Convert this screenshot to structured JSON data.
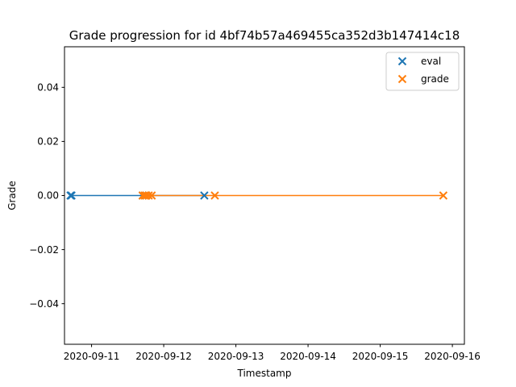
{
  "chart_data": {
    "type": "line",
    "title": "Grade progression for id 4bf74b57a469455ca352d3b147414c18",
    "xlabel": "Timestamp",
    "ylabel": "Grade",
    "x_axis_type": "date",
    "xlim": [
      "2020-09-10T15:00",
      "2020-09-16T04:00"
    ],
    "ylim": [
      -0.055,
      0.055
    ],
    "x_ticks": [
      "2020-09-11",
      "2020-09-12",
      "2020-09-13",
      "2020-09-14",
      "2020-09-15",
      "2020-09-16"
    ],
    "y_ticks": [
      {
        "value": 0.04,
        "label": "0.04"
      },
      {
        "value": 0.02,
        "label": "0.02"
      },
      {
        "value": 0.0,
        "label": "0.00"
      },
      {
        "value": -0.02,
        "label": "−0.02"
      },
      {
        "value": -0.04,
        "label": "−0.04"
      }
    ],
    "grid": false,
    "legend_position": "top-right",
    "series": [
      {
        "name": "eval",
        "color": "#1f77b4",
        "marker": "x",
        "points": [
          {
            "x": "2020-09-10T17:00",
            "y": 0
          },
          {
            "x": "2020-09-10T17:20",
            "y": 0
          },
          {
            "x": "2020-09-11T17:00",
            "y": 0
          },
          {
            "x": "2020-09-11T18:10",
            "y": 0
          },
          {
            "x": "2020-09-12T13:30",
            "y": 0
          }
        ]
      },
      {
        "name": "grade",
        "color": "#ff7f0e",
        "marker": "x",
        "points": [
          {
            "x": "2020-09-11T17:00",
            "y": 0
          },
          {
            "x": "2020-09-11T17:40",
            "y": 0
          },
          {
            "x": "2020-09-11T18:10",
            "y": 0
          },
          {
            "x": "2020-09-11T19:00",
            "y": 0
          },
          {
            "x": "2020-09-11T20:00",
            "y": 0
          },
          {
            "x": "2020-09-12T17:00",
            "y": 0
          },
          {
            "x": "2020-09-15T21:00",
            "y": 0
          }
        ]
      }
    ]
  }
}
